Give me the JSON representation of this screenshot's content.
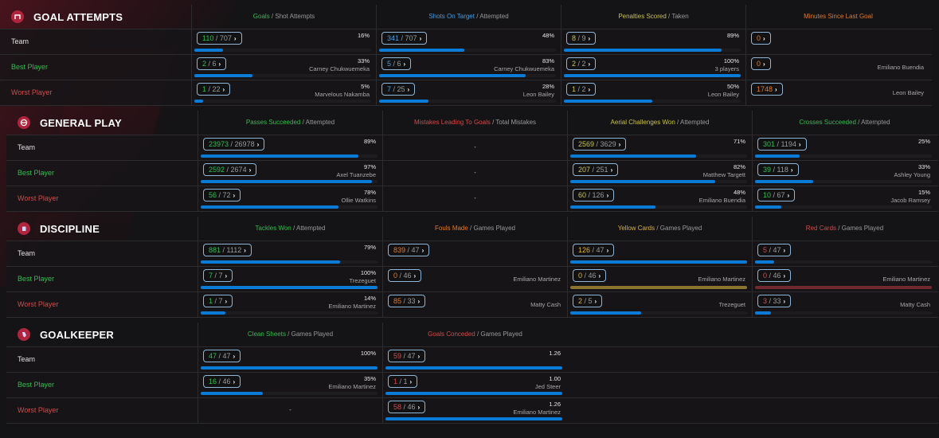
{
  "colors": {
    "green": "#2fbf4e",
    "blue": "#4a9de0",
    "yellow": "#c9c24a",
    "orange": "#e07a2c",
    "red": "#d24b4b",
    "bar": "#0b7bd8",
    "bar_yellow": "#8b7430",
    "bar_red": "#6e2a2e"
  },
  "row_labels": {
    "team": "Team",
    "best": "Best Player",
    "worst": "Worst Player"
  },
  "sections": [
    {
      "title": "GOAL ATTEMPTS",
      "icon": "goal-icon",
      "columns": [
        {
          "head_hl": "Goals",
          "head_rest": " / Shot Attempts",
          "hl_color": "#2fbf4e",
          "num_color": "#2fbf4e",
          "rows": [
            {
              "a": "110",
              "b": "707",
              "pct": "16%",
              "player": "",
              "fill": 0.16
            },
            {
              "a": "2",
              "b": "6",
              "pct": "33%",
              "player": "Carney Chukwuemeka",
              "fill": 0.33
            },
            {
              "a": "1",
              "b": "22",
              "pct": "5%",
              "player": "Marvelous Nakamba",
              "fill": 0.05
            }
          ]
        },
        {
          "head_hl": "Shots On Target",
          "head_rest": " / Attempted",
          "hl_color": "#4a9de0",
          "num_color": "#4a9de0",
          "rows": [
            {
              "a": "341",
              "b": "707",
              "pct": "48%",
              "player": "",
              "fill": 0.48
            },
            {
              "a": "5",
              "b": "6",
              "pct": "83%",
              "player": "Carney Chukwuemeka",
              "fill": 0.83
            },
            {
              "a": "7",
              "b": "25",
              "pct": "28%",
              "player": "Leon Bailey",
              "fill": 0.28
            }
          ]
        },
        {
          "head_hl": "Penalties Scored",
          "head_rest": " / Taken",
          "hl_color": "#c9c24a",
          "num_color": "#c9c24a",
          "rows": [
            {
              "a": "8",
              "b": "9",
              "pct": "89%",
              "player": "",
              "fill": 0.89
            },
            {
              "a": "2",
              "b": "2",
              "pct": "100%",
              "player": "3 players",
              "fill": 1.0
            },
            {
              "a": "1",
              "b": "2",
              "pct": "50%",
              "player": "Leon Bailey",
              "fill": 0.5
            }
          ]
        },
        {
          "head_hl": "Minutes Since Last Goal",
          "head_rest": "",
          "hl_color": "#e07a2c",
          "num_color": "#e07a2c",
          "rows": [
            {
              "a": "0",
              "b": null,
              "pct": "",
              "player": "",
              "fill": null
            },
            {
              "a": "0",
              "b": null,
              "pct": "",
              "player": "Emiliano Buendia",
              "fill": null
            },
            {
              "a": "1748",
              "b": null,
              "pct": "",
              "player": "Leon Bailey",
              "fill": null
            }
          ]
        }
      ]
    },
    {
      "title": "GENERAL PLAY",
      "icon": "ball-icon",
      "columns": [
        {
          "head_hl": "Passes Succeeded",
          "head_rest": " / Attempted",
          "hl_color": "#2fbf4e",
          "num_color": "#2fbf4e",
          "rows": [
            {
              "a": "23973",
              "b": "26978",
              "pct": "89%",
              "player": "",
              "fill": 0.89
            },
            {
              "a": "2592",
              "b": "2674",
              "pct": "97%",
              "player": "Axel Tuanzebe",
              "fill": 0.97
            },
            {
              "a": "56",
              "b": "72",
              "pct": "78%",
              "player": "Ollie Watkins",
              "fill": 0.78
            }
          ]
        },
        {
          "head_hl": "Mistakes Leading To Goals",
          "head_rest": " / Total Mistakes",
          "hl_color": "#d24b4b",
          "num_color": "#d24b4b",
          "rows": [
            {
              "dash": "-"
            },
            {
              "dash": "-"
            },
            {
              "dash": "-"
            }
          ]
        },
        {
          "head_hl": "Aerial Challenges Won",
          "head_rest": " / Attempted",
          "hl_color": "#c9c24a",
          "num_color": "#c9c24a",
          "rows": [
            {
              "a": "2569",
              "b": "3629",
              "pct": "71%",
              "player": "",
              "fill": 0.71
            },
            {
              "a": "207",
              "b": "251",
              "pct": "82%",
              "player": "Matthew Targett",
              "fill": 0.82
            },
            {
              "a": "60",
              "b": "126",
              "pct": "48%",
              "player": "Emiliano Buendia",
              "fill": 0.48
            }
          ]
        },
        {
          "head_hl": "Crosses Succeeded",
          "head_rest": " / Attempted",
          "hl_color": "#2fbf4e",
          "num_color": "#2fbf4e",
          "rows": [
            {
              "a": "301",
              "b": "1194",
              "pct": "25%",
              "player": "",
              "fill": 0.25
            },
            {
              "a": "39",
              "b": "118",
              "pct": "33%",
              "player": "Ashley Young",
              "fill": 0.33
            },
            {
              "a": "10",
              "b": "67",
              "pct": "15%",
              "player": "Jacob Ramsey",
              "fill": 0.15
            }
          ]
        }
      ]
    },
    {
      "title": "DISCIPLINE",
      "icon": "card-icon",
      "columns": [
        {
          "head_hl": "Tackles Won",
          "head_rest": " / Attempted",
          "hl_color": "#2fbf4e",
          "num_color": "#2fbf4e",
          "rows": [
            {
              "a": "881",
              "b": "1112",
              "pct": "79%",
              "player": "",
              "fill": 0.79
            },
            {
              "a": "7",
              "b": "7",
              "pct": "100%",
              "player": "Trezeguet",
              "fill": 1.0
            },
            {
              "a": "1",
              "b": "7",
              "pct": "14%",
              "player": "Emiliano Martinez",
              "fill": 0.14
            }
          ]
        },
        {
          "head_hl": "Fouls Made",
          "head_rest": " / Games Played",
          "hl_color": "#e07a2c",
          "num_color": "#e07a2c",
          "rows": [
            {
              "a": "839",
              "b": "47",
              "pct": "",
              "player": "",
              "fill": null
            },
            {
              "a": "0",
              "b": "46",
              "pct": "",
              "player": "Emiliano Martinez",
              "fill": null
            },
            {
              "a": "85",
              "b": "33",
              "pct": "",
              "player": "Matty Cash",
              "fill": null
            }
          ]
        },
        {
          "head_hl": "Yellow Cards",
          "head_rest": " / Games Played",
          "hl_color": "#e0b22c",
          "num_color": "#e0b22c",
          "rows": [
            {
              "a": "126",
              "b": "47",
              "pct": "",
              "player": "",
              "fill": 1.0
            },
            {
              "a": "0",
              "b": "46",
              "pct": "",
              "player": "Emiliano Martinez",
              "fill": 1.0,
              "bar_color": "#8b7430"
            },
            {
              "a": "2",
              "b": "5",
              "pct": "",
              "player": "Trezeguet",
              "fill": 0.4
            }
          ]
        },
        {
          "head_hl": "Red Cards",
          "head_rest": " / Games Played",
          "hl_color": "#d24b4b",
          "num_color": "#d24b4b",
          "rows": [
            {
              "a": "5",
              "b": "47",
              "pct": "",
              "player": "",
              "fill": 0.11
            },
            {
              "a": "0",
              "b": "46",
              "pct": "",
              "player": "Emiliano Martinez",
              "fill": 1.0,
              "bar_color": "#6e2a2e"
            },
            {
              "a": "3",
              "b": "33",
              "pct": "",
              "player": "Matty Cash",
              "fill": 0.09
            }
          ]
        }
      ]
    },
    {
      "title": "GOALKEEPER",
      "icon": "glove-icon",
      "columns": [
        {
          "head_hl": "Clean Sheets",
          "head_rest": " / Games Played",
          "hl_color": "#2fbf4e",
          "num_color": "#2fbf4e",
          "rows": [
            {
              "a": "47",
              "b": "47",
              "pct": "100%",
              "player": "",
              "fill": 1.0
            },
            {
              "a": "16",
              "b": "46",
              "pct": "35%",
              "player": "Emiliano Martinez",
              "fill": 0.35
            },
            {
              "dash": "-"
            }
          ]
        },
        {
          "head_hl": "Goals Conceded",
          "head_rest": " / Games Played",
          "hl_color": "#d24b4b",
          "num_color": "#d24b4b",
          "rows": [
            {
              "a": "59",
              "b": "47",
              "pct": "1.26",
              "player": "",
              "fill": 1.0
            },
            {
              "a": "1",
              "b": "1",
              "pct": "1.00",
              "player": "Jed Steer",
              "fill": 1.0
            },
            {
              "a": "58",
              "b": "46",
              "pct": "1.26",
              "player": "Emiliano Martinez",
              "fill": 1.0
            }
          ]
        }
      ]
    }
  ]
}
